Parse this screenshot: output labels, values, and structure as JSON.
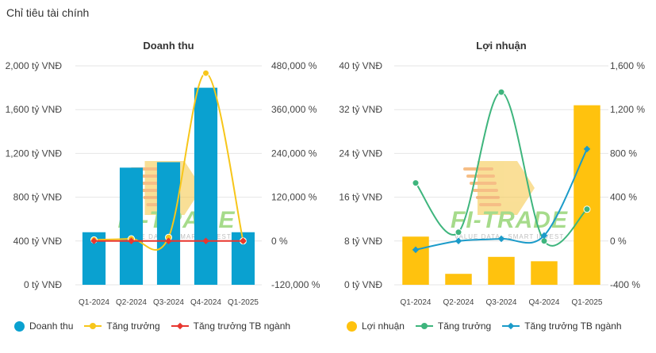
{
  "page": {
    "title": "Chỉ tiêu tài chính"
  },
  "watermark": {
    "brand": "FI-TRADE",
    "tagline": "VALUE DATA - SMART INVEST"
  },
  "colors": {
    "bar_left": "#0aa1d0",
    "bar_right": "#ffc20e",
    "growth_left": "#f7c61a",
    "avg_left": "#e8362f",
    "growth_right": "#3eb57d",
    "avg_right": "#1b9bc9",
    "grid": "#e6e6e6"
  },
  "chart_data": [
    {
      "type": "bar",
      "title": "Doanh thu",
      "categories": [
        "Q1-2024",
        "Q2-2024",
        "Q3-2024",
        "Q4-2024",
        "Q1-2025"
      ],
      "series": [
        {
          "name": "Doanh thu",
          "kind": "bar",
          "axis": "left",
          "values": [
            480,
            1070,
            1120,
            1800,
            480
          ]
        },
        {
          "name": "Tăng trưởng",
          "kind": "line",
          "axis": "right",
          "values": [
            3000,
            6000,
            10000,
            460000,
            0
          ]
        },
        {
          "name": "Tăng trưởng TB ngành",
          "kind": "line",
          "axis": "right",
          "values": [
            0,
            0,
            0,
            0,
            0
          ]
        }
      ],
      "y_left": {
        "min": 0,
        "max": 2000,
        "ticks": [
          0,
          400,
          800,
          1200,
          1600,
          2000
        ],
        "tick_labels": [
          "0 tỷ VNĐ",
          "400 tỷ VNĐ",
          "800 tỷ VNĐ",
          "1,200 tỷ VNĐ",
          "1,600 tỷ VNĐ",
          "2,000 tỷ VNĐ"
        ]
      },
      "y_right": {
        "min": -120000,
        "max": 480000,
        "ticks": [
          -120000,
          0,
          120000,
          240000,
          360000,
          480000
        ],
        "tick_labels": [
          "-120,000 %",
          "0 %",
          "120,000 %",
          "240,000 %",
          "360,000 %",
          "480,000 %"
        ]
      },
      "legend": [
        "Doanh thu",
        "Tăng trưởng",
        "Tăng trưởng TB ngành"
      ]
    },
    {
      "type": "bar",
      "title": "Lợi nhuận",
      "categories": [
        "Q1-2024",
        "Q2-2024",
        "Q3-2024",
        "Q4-2024",
        "Q1-2025"
      ],
      "series": [
        {
          "name": "Lợi nhuận",
          "kind": "bar",
          "axis": "left",
          "values": [
            8.8,
            2.0,
            5.1,
            4.3,
            32.8
          ]
        },
        {
          "name": "Tăng trưởng",
          "kind": "line",
          "axis": "right",
          "values": [
            530,
            80,
            1360,
            0,
            290
          ]
        },
        {
          "name": "Tăng trưởng TB ngành",
          "kind": "line",
          "axis": "right",
          "values": [
            -80,
            0,
            20,
            50,
            840
          ]
        }
      ],
      "y_left": {
        "min": 0,
        "max": 40,
        "ticks": [
          0,
          8,
          16,
          24,
          32,
          40
        ],
        "tick_labels": [
          "0 tỷ VNĐ",
          "8 tỷ VNĐ",
          "16 tỷ VNĐ",
          "24 tỷ VNĐ",
          "32 tỷ VNĐ",
          "40 tỷ VNĐ"
        ]
      },
      "y_right": {
        "min": -400,
        "max": 1600,
        "ticks": [
          -400,
          0,
          400,
          800,
          1200,
          1600
        ],
        "tick_labels": [
          "-400 %",
          "0 %",
          "400 %",
          "800 %",
          "1,200 %",
          "1,600 %"
        ]
      },
      "legend": [
        "Lợi nhuận",
        "Tăng trưởng",
        "Tăng trưởng TB ngành"
      ]
    }
  ]
}
